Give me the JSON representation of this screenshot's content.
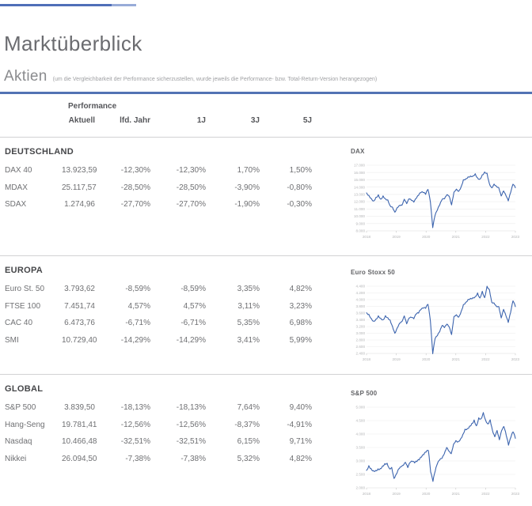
{
  "page": {
    "title": "Marktüberblick",
    "subtitle": "Aktien",
    "subtitle_note": "(um die Vergleichbarkeit der Performance sicherzustellen, wurde jeweils die Performance- bzw. Total-Return-Version herangezogen)"
  },
  "table": {
    "group_header": "Performance",
    "columns": [
      "Aktuell",
      "lfd. Jahr",
      "1J",
      "3J",
      "5J"
    ],
    "sections": [
      {
        "name": "DEUTSCHLAND",
        "rows": [
          {
            "label": "DAX 40",
            "values": [
              "13.923,59",
              "-12,30%",
              "-12,30%",
              "1,70%",
              "1,50%"
            ]
          },
          {
            "label": "MDAX",
            "values": [
              "25.117,57",
              "-28,50%",
              "-28,50%",
              "-3,90%",
              "-0,80%"
            ]
          },
          {
            "label": "SDAX",
            "values": [
              "1.274,96",
              "-27,70%",
              "-27,70%",
              "-1,90%",
              "-0,30%"
            ]
          }
        ]
      },
      {
        "name": "EUROPA",
        "rows": [
          {
            "label": "Euro St. 50",
            "values": [
              "3.793,62",
              "-8,59%",
              "-8,59%",
              "3,35%",
              "4,82%"
            ]
          },
          {
            "label": "FTSE 100",
            "values": [
              "7.451,74",
              "4,57%",
              "4,57%",
              "3,11%",
              "3,23%"
            ]
          },
          {
            "label": "CAC 40",
            "values": [
              "6.473,76",
              "-6,71%",
              "-6,71%",
              "5,35%",
              "6,98%"
            ]
          },
          {
            "label": "SMI",
            "values": [
              "10.729,40",
              "-14,29%",
              "-14,29%",
              "3,41%",
              "5,99%"
            ]
          }
        ]
      },
      {
        "name": "GLOBAL",
        "rows": [
          {
            "label": "S&P 500",
            "values": [
              "3.839,50",
              "-18,13%",
              "-18,13%",
              "7,64%",
              "9,40%"
            ]
          },
          {
            "label": "Hang-Seng",
            "values": [
              "19.781,41",
              "-12,56%",
              "-12,56%",
              "-8,37%",
              "-4,91%"
            ]
          },
          {
            "label": "Nasdaq",
            "values": [
              "10.466,48",
              "-32,51%",
              "-32,51%",
              "6,15%",
              "9,71%"
            ]
          },
          {
            "label": "Nikkei",
            "values": [
              "26.094,50",
              "-7,38%",
              "-7,38%",
              "5,32%",
              "4,82%"
            ]
          }
        ]
      }
    ]
  },
  "colors": {
    "accent_blue": "#4f6fb8",
    "accent_blue_light": "#98abd8",
    "chart_line": "#3c64ae",
    "grid_line": "#ececec",
    "axis_label": "#b3b4b6",
    "heading_gray": "#6b6c70",
    "text_gray": "#6f7073"
  },
  "chart_data": [
    {
      "type": "line",
      "title": "DAX",
      "x_tick_labels": [
        "2018",
        "2019",
        "2020",
        "2021",
        "2022",
        "2023"
      ],
      "y_tick_labels": [
        "17.000",
        "16.000",
        "15.000",
        "14.000",
        "13.000",
        "12.000",
        "11.000",
        "10.000",
        "9.000",
        "8.000"
      ],
      "ylim": [
        8000,
        17000
      ],
      "legend": "none",
      "grid": true,
      "series": [
        {
          "name": "DAX",
          "values": [
            13200,
            12860,
            12450,
            12100,
            12600,
            12950,
            12350,
            12800,
            12400,
            12250,
            11450,
            11250,
            10560,
            11200,
            11500,
            11520,
            12340,
            11730,
            12400,
            12190,
            11940,
            12430,
            12870,
            13240,
            13250,
            13000,
            13680,
            12000,
            8440,
            10100,
            10860,
            11590,
            12310,
            12400,
            12950,
            12760,
            11560,
            13290,
            13720,
            13430,
            14020,
            15010,
            15140,
            15420,
            15530,
            15540,
            15840,
            15260,
            15100,
            15690,
            16080,
            15900,
            14460,
            13900,
            14420,
            14100,
            13900,
            12780,
            13480,
            12840,
            12110,
            13250,
            14400,
            13920
          ]
        }
      ]
    },
    {
      "type": "line",
      "title": "Euro Stoxx 50",
      "x_tick_labels": [
        "2018",
        "2019",
        "2020",
        "2021",
        "2022",
        "2023"
      ],
      "y_tick_labels": [
        "4.400",
        "4.200",
        "4.000",
        "3.800",
        "3.600",
        "3.400",
        "3.200",
        "3.000",
        "2.800",
        "2.600",
        "2.400"
      ],
      "ylim": [
        2400,
        4400
      ],
      "legend": "none",
      "grid": true,
      "series": [
        {
          "name": "Euro Stoxx 50",
          "values": [
            3610,
            3560,
            3440,
            3360,
            3420,
            3520,
            3450,
            3400,
            3525,
            3460,
            3390,
            3200,
            3000,
            3160,
            3300,
            3350,
            3515,
            3280,
            3450,
            3470,
            3430,
            3570,
            3600,
            3700,
            3745,
            3740,
            3860,
            3380,
            2390,
            2830,
            2930,
            3050,
            3230,
            3170,
            3270,
            3190,
            2960,
            3490,
            3550,
            3480,
            3640,
            3850,
            3920,
            4010,
            4040,
            4060,
            4090,
            4200,
            4050,
            4250,
            4060,
            4400,
            4300,
            3920,
            3900,
            3800,
            3790,
            3455,
            3710,
            3520,
            3320,
            3620,
            3965,
            3794
          ]
        }
      ]
    },
    {
      "type": "line",
      "title": "S&P 500",
      "x_tick_labels": [
        "2018",
        "2019",
        "2020",
        "2021",
        "2022",
        "2023"
      ],
      "y_tick_labels": [
        "5.000",
        "4.500",
        "4.000",
        "3.500",
        "3.000",
        "2.500",
        "2.000"
      ],
      "ylim": [
        2000,
        5000
      ],
      "legend": "none",
      "grid": true,
      "series": [
        {
          "name": "S&P 500",
          "values": [
            2650,
            2824,
            2714,
            2641,
            2648,
            2705,
            2718,
            2816,
            2902,
            2914,
            2712,
            2760,
            2351,
            2510,
            2704,
            2784,
            2834,
            2946,
            2752,
            2942,
            2980,
            2926,
            2977,
            3038,
            3141,
            3231,
            3329,
            3386,
            2585,
            2237,
            2630,
            2912,
            3044,
            3100,
            3271,
            3500,
            3363,
            3270,
            3622,
            3756,
            3714,
            3811,
            3973,
            4181,
            4204,
            4298,
            4395,
            4523,
            4308,
            4605,
            4567,
            4800,
            4516,
            4374,
            4530,
            4132,
            3900,
            4132,
            3785,
            4130,
            4280,
            3955,
            3586,
            3872,
            4080,
            3840
          ]
        }
      ]
    }
  ]
}
